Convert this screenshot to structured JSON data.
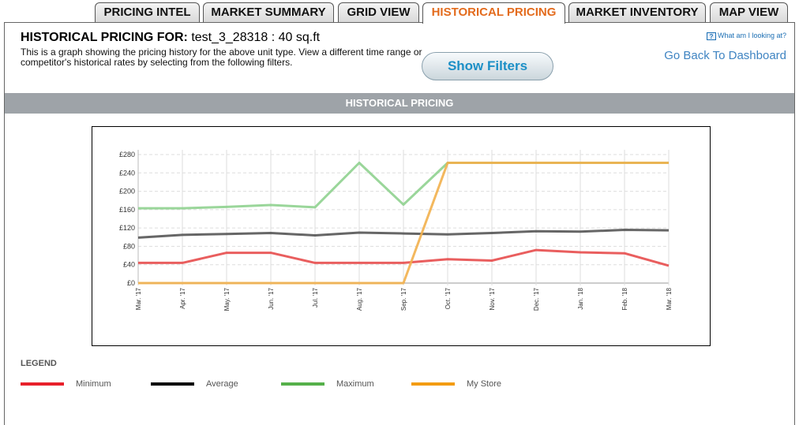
{
  "tabs": [
    {
      "label": "PRICING INTEL",
      "active": false
    },
    {
      "label": "MARKET SUMMARY",
      "active": false
    },
    {
      "label": "GRID VIEW",
      "active": false
    },
    {
      "label": "HISTORICAL PRICING",
      "active": true
    },
    {
      "label": "MARKET INVENTORY",
      "active": false
    },
    {
      "label": "MAP VIEW",
      "active": false
    }
  ],
  "header": {
    "title_label": "HISTORICAL PRICING FOR:",
    "title_value": "test_3_28318 : 40 sq.ft",
    "description": "This is a graph showing the pricing history for the above unit type. View a different time range or competitor's historical rates by selecting from the following filters.",
    "show_filters_label": "Show Filters",
    "help_label": "What am I looking at?",
    "back_label": "Go Back To Dashboard"
  },
  "section_title": "HISTORICAL PRICING",
  "chart_data": {
    "type": "line",
    "categories": [
      "Mar. '17",
      "Apr. '17",
      "May. '17",
      "Jun. '17",
      "Jul. '17",
      "Aug. '17",
      "Sep. '17",
      "Oct. '17",
      "Nov. '17",
      "Dec. '17",
      "Jan. '18",
      "Feb. '18",
      "Mar. '18"
    ],
    "y_ticks": [
      "£0",
      "£40",
      "£80",
      "£120",
      "£160",
      "£200",
      "£240",
      "£280"
    ],
    "ylim": [
      0,
      280
    ],
    "grid": true,
    "series": [
      {
        "name": "Minimum",
        "color": "#e74c4c",
        "values": [
          44,
          44,
          66,
          66,
          44,
          44,
          44,
          52,
          49,
          72,
          67,
          65,
          38
        ]
      },
      {
        "name": "Average",
        "color": "#555555",
        "values": [
          99,
          105,
          107,
          109,
          104,
          110,
          108,
          106,
          109,
          113,
          112,
          116,
          115
        ]
      },
      {
        "name": "Maximum",
        "color": "#8fd18f",
        "values": [
          163,
          163,
          166,
          170,
          165,
          262,
          171,
          262,
          262,
          262,
          262,
          262,
          262
        ]
      },
      {
        "name": "My Store",
        "color": "#f2b04c",
        "values": [
          0,
          0,
          0,
          0,
          0,
          0,
          0,
          262,
          262,
          262,
          262,
          262,
          262
        ]
      }
    ]
  },
  "legend": {
    "title": "LEGEND",
    "items": [
      {
        "label": "Minimum",
        "color": "#e8202a"
      },
      {
        "label": "Average",
        "color": "#000000"
      },
      {
        "label": "Maximum",
        "color": "#55b04a"
      },
      {
        "label": "My Store",
        "color": "#f39c12"
      }
    ]
  }
}
